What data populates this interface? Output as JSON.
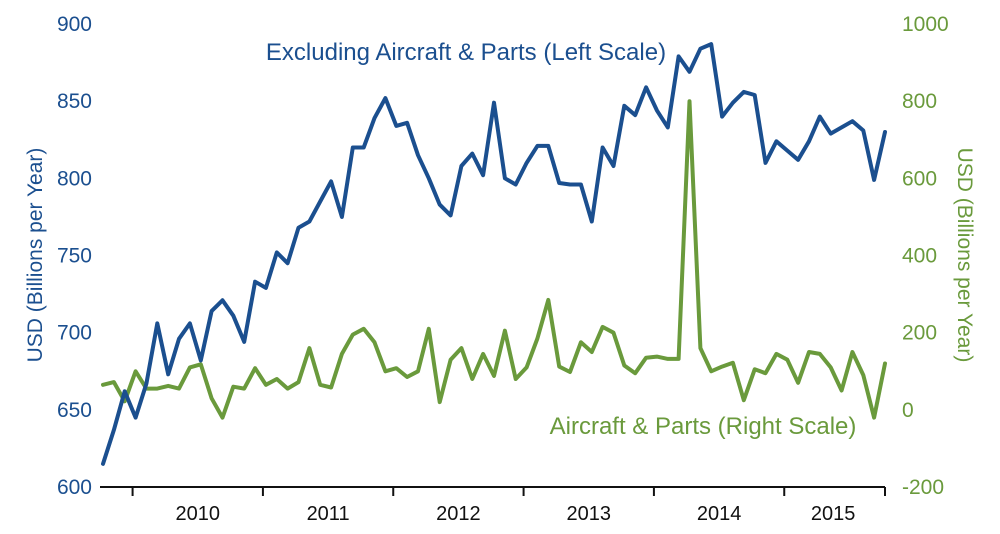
{
  "chart_data": {
    "type": "line",
    "x_start": "2009-10",
    "x_end": "2015-12",
    "x_frequency": "monthly",
    "x_tick_labels": [
      "2010",
      "2011",
      "2012",
      "2013",
      "2014",
      "2015"
    ],
    "y_left": {
      "label": "USD (Billions per Year)",
      "range": [
        600,
        900
      ],
      "ticks": [
        600,
        650,
        700,
        750,
        800,
        850,
        900
      ],
      "color": "#1b4f8f"
    },
    "y_right": {
      "label": "USD (Billions per Year)",
      "range": [
        -200,
        1000
      ],
      "ticks": [
        -200,
        0,
        200,
        400,
        600,
        800,
        1000
      ],
      "color": "#6a9a3c"
    },
    "grid": false,
    "legend": "inline labels",
    "series": [
      {
        "name": "Excluding Aircraft & Parts (Left Scale)",
        "axis": "left",
        "color": "#1b4f8f",
        "values": [
          615,
          637,
          662,
          645,
          667,
          706,
          673,
          696,
          706,
          682,
          714,
          721,
          711,
          694,
          733,
          729,
          752,
          745,
          768,
          772,
          785,
          798,
          775,
          820,
          820,
          839,
          852,
          834,
          836,
          815,
          800,
          783,
          776,
          808,
          816,
          802,
          849,
          800,
          796,
          810,
          821,
          821,
          797,
          796,
          796,
          772,
          820,
          808,
          847,
          841,
          859,
          844,
          833,
          879,
          869,
          884,
          887,
          840,
          849,
          856,
          854,
          810,
          824,
          818,
          812,
          824,
          840,
          829,
          833,
          837,
          831,
          799,
          830
        ]
      },
      {
        "name": "Aircraft & Parts (Right Scale)",
        "axis": "right",
        "color": "#6a9a3c",
        "values": [
          65,
          72,
          22,
          100,
          55,
          55,
          62,
          55,
          110,
          118,
          30,
          -20,
          60,
          55,
          108,
          65,
          80,
          55,
          72,
          160,
          65,
          58,
          145,
          195,
          210,
          175,
          100,
          108,
          85,
          100,
          210,
          20,
          130,
          160,
          80,
          145,
          88,
          205,
          80,
          110,
          185,
          285,
          112,
          98,
          175,
          150,
          215,
          200,
          115,
          95,
          135,
          138,
          132,
          132,
          800,
          160,
          100,
          112,
          122,
          25,
          105,
          95,
          145,
          130,
          70,
          150,
          145,
          110,
          50,
          150,
          90,
          -20,
          120
        ]
      }
    ],
    "annotations": [
      "Excluding Aircraft & Parts (Left Scale)",
      "Aircraft & Parts (Right Scale)"
    ]
  }
}
